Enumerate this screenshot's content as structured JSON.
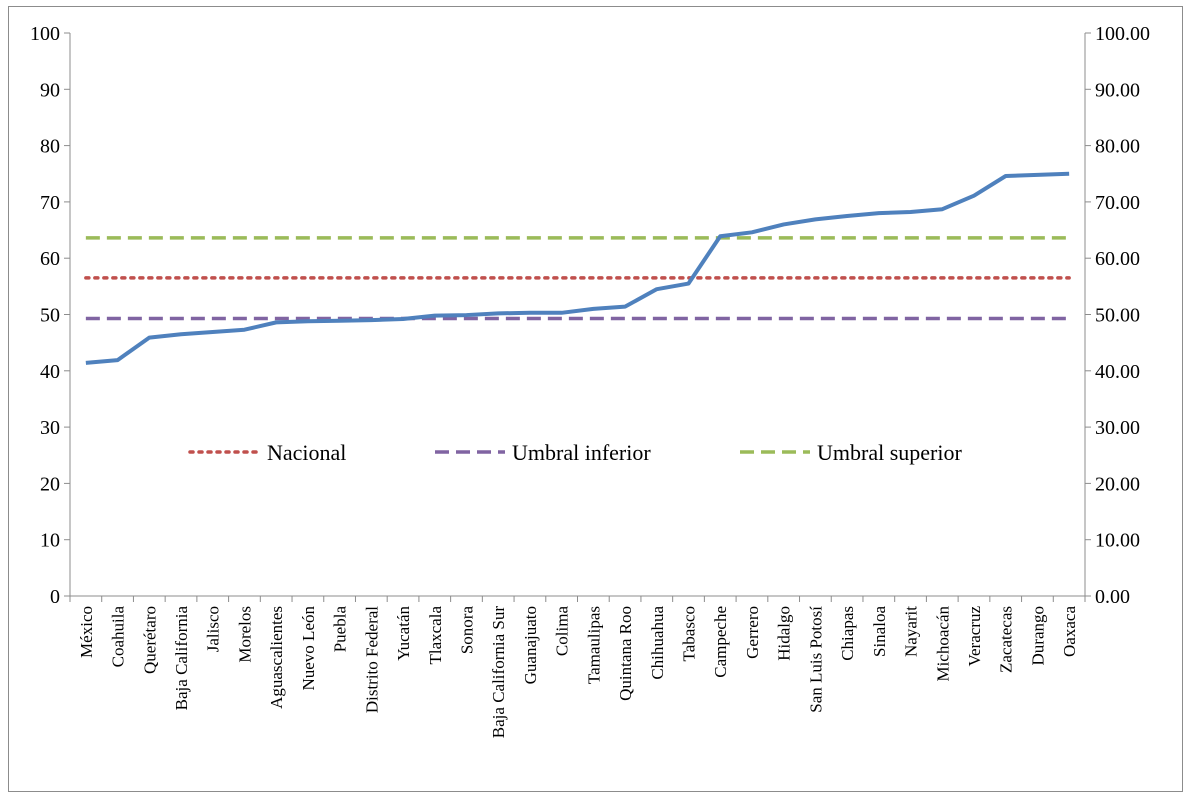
{
  "chart_data": {
    "type": "line",
    "title": "",
    "xlabel": "",
    "ylabel": "",
    "ylim": [
      0,
      100
    ],
    "y2lim": [
      0,
      100
    ],
    "y_ticks": [
      "0",
      "10",
      "20",
      "30",
      "40",
      "50",
      "60",
      "70",
      "80",
      "90",
      "100"
    ],
    "y2_ticks": [
      "0.00",
      "10.00",
      "20.00",
      "30.00",
      "40.00",
      "50.00",
      "60.00",
      "70.00",
      "80.00",
      "90.00",
      "100.00"
    ],
    "categories": [
      "México",
      "Coahuila",
      "Querétaro",
      "Baja California",
      "Jalisco",
      "Morelos",
      "Aguascalientes",
      "Nuevo León",
      "Puebla",
      "Distrito Federal",
      "Yucatán",
      "Tlaxcala",
      "Sonora",
      "Baja California Sur",
      "Guanajuato",
      "Colima",
      "Tamaulipas",
      "Quintana Roo",
      "Chihuahua",
      "Tabasco",
      "Campeche",
      "Gerrero",
      "Hidalgo",
      "San Luis Potosí",
      "Chiapas",
      "Sinaloa",
      "Nayarit",
      "Michoacán",
      "Veracruz",
      "Zacatecas",
      "Durango",
      "Oaxaca"
    ],
    "series": [
      {
        "color": "#4f81bd",
        "style": "solid",
        "values": [
          41.4,
          41.9,
          45.9,
          46.5,
          46.9,
          47.3,
          48.6,
          48.8,
          48.9,
          49.0,
          49.2,
          49.8,
          49.9,
          50.2,
          50.3,
          50.3,
          51.0,
          51.4,
          54.5,
          55.5,
          63.9,
          64.6,
          66.0,
          66.9,
          67.5,
          68.0,
          68.2,
          68.7,
          71.1,
          74.6,
          74.8,
          75.0
        ]
      },
      {
        "name": "Nacional",
        "color": "#c0504d",
        "style": "dotted",
        "value": 56.5
      },
      {
        "name": "Umbral inferior",
        "color": "#8064a2",
        "style": "dashed",
        "value": 49.3
      },
      {
        "name": "Umbral superior",
        "color": "#9bbb59",
        "style": "dashed",
        "value": 63.6
      }
    ],
    "legend_position": "center",
    "grid": false
  }
}
